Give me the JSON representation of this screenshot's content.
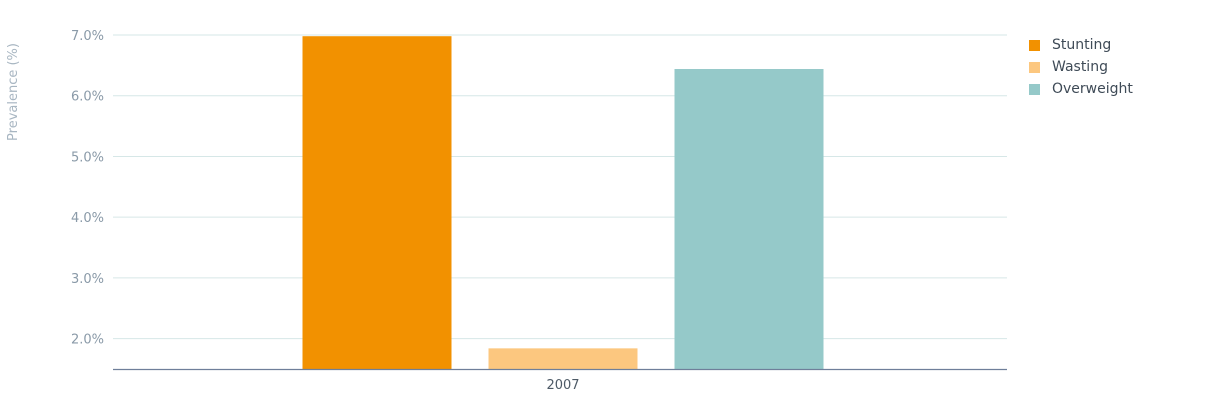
{
  "chart_data": {
    "type": "bar",
    "categories": [
      "2007"
    ],
    "series": [
      {
        "name": "Stunting",
        "values": [
          6.98
        ],
        "color": "#f29100"
      },
      {
        "name": "Wasting",
        "values": [
          1.84
        ],
        "color": "#fcc77f"
      },
      {
        "name": "Overweight",
        "values": [
          6.44
        ],
        "color": "#95c9c9"
      }
    ],
    "title": "",
    "xlabel": "",
    "ylabel": "Prevalence (%)",
    "ylim": [
      1.5,
      7.0
    ],
    "yticks": [
      2.0,
      3.0,
      4.0,
      5.0,
      6.0,
      7.0
    ],
    "ytick_labels": [
      "2.0%",
      "3.0%",
      "4.0%",
      "5.0%",
      "6.0%",
      "7.0%"
    ],
    "grid": true,
    "legend_position": "top-right"
  }
}
